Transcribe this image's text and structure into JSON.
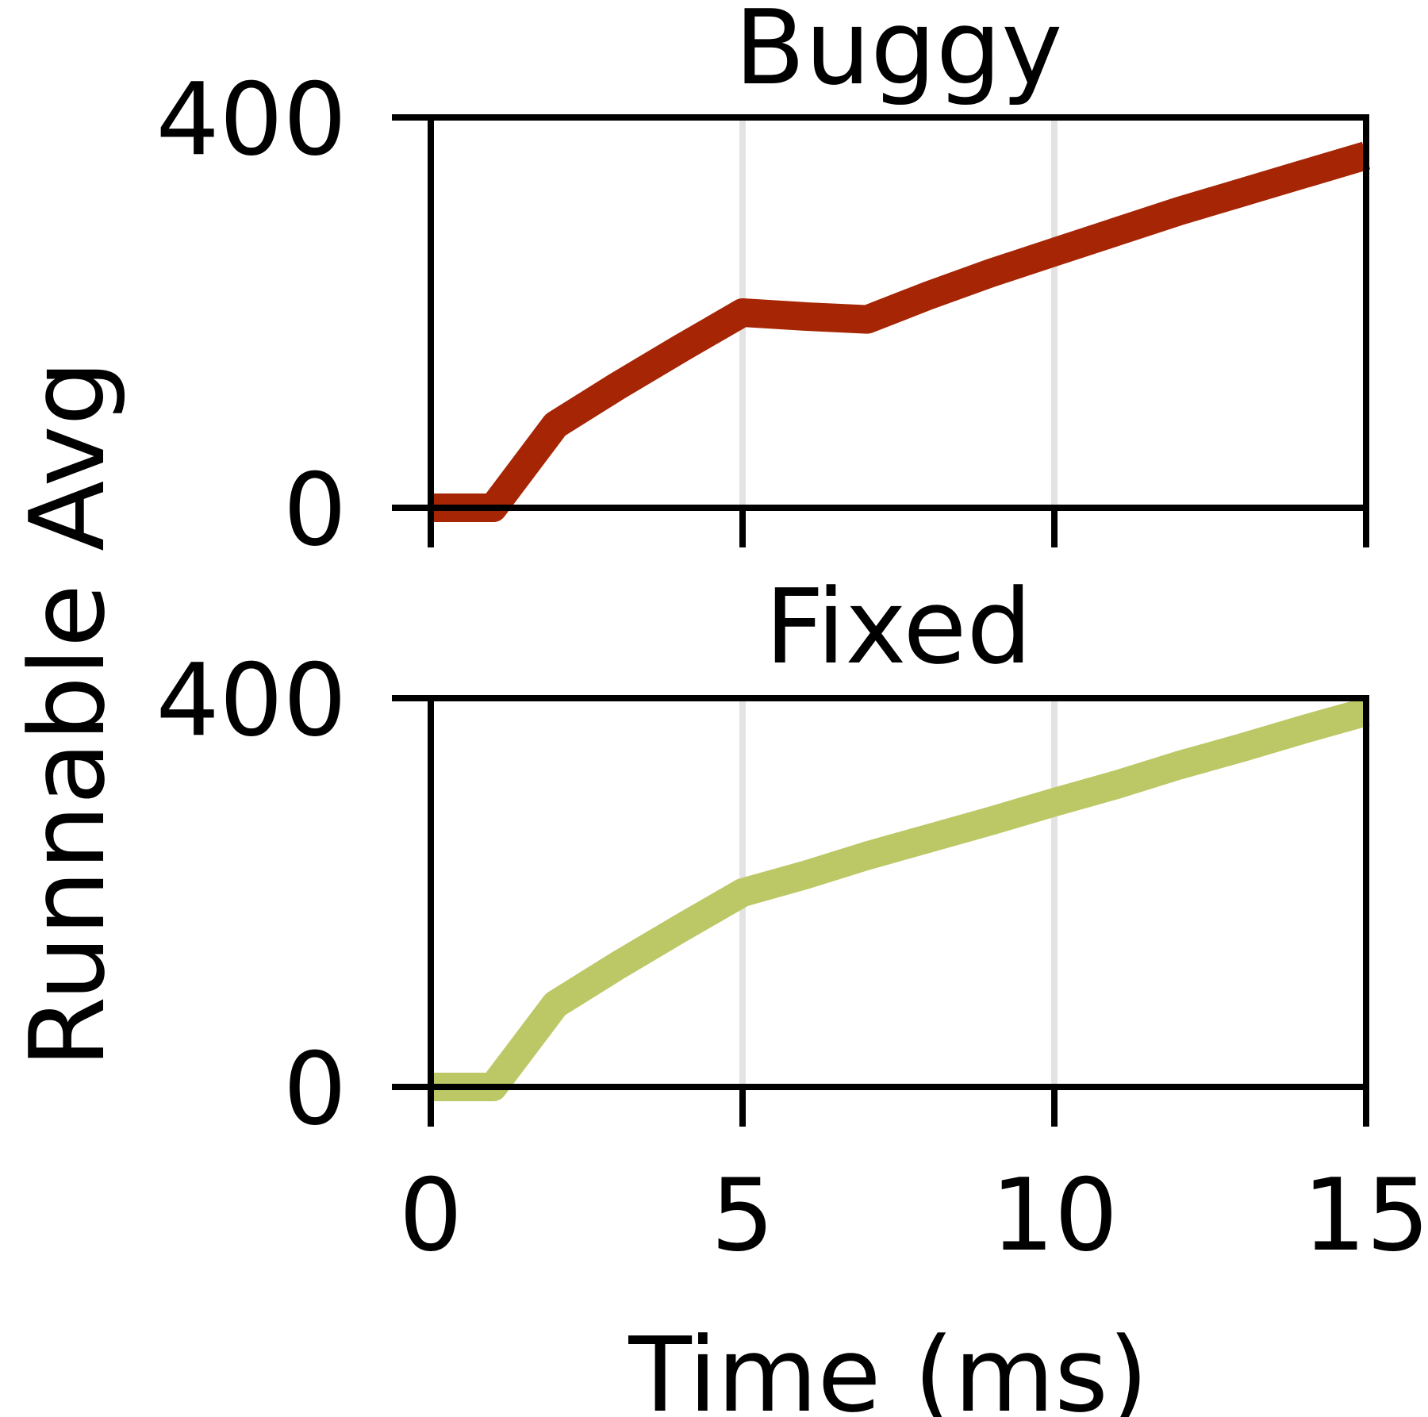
{
  "chart_data": [
    {
      "type": "line",
      "title": "Buggy",
      "xlabel": "Time (ms)",
      "ylabel": "Runnable Avg",
      "xlim": [
        0,
        15
      ],
      "ylim": [
        0,
        400
      ],
      "x_ticks": [
        "0",
        "5",
        "10",
        "15"
      ],
      "y_ticks": [
        "0",
        "400"
      ],
      "grid": "vertical",
      "color": "#a52504",
      "series": [
        {
          "x": [
            0,
            1,
            2,
            3,
            4,
            5,
            6,
            7,
            8,
            9,
            10,
            11,
            12,
            13,
            14,
            15
          ],
          "values": [
            0,
            0,
            85,
            125,
            163,
            200,
            196,
            193,
            218,
            241,
            262,
            283,
            304,
            323,
            342,
            361
          ]
        }
      ]
    },
    {
      "type": "line",
      "title": "Fixed",
      "xlabel": "Time (ms)",
      "ylabel": "Runnable Avg",
      "xlim": [
        0,
        15
      ],
      "ylim": [
        0,
        400
      ],
      "x_ticks": [
        "0",
        "5",
        "10",
        "15"
      ],
      "y_ticks": [
        "0",
        "400"
      ],
      "grid": "vertical",
      "color": "#bcc866",
      "series": [
        {
          "x": [
            0,
            1,
            2,
            3,
            4,
            5,
            6,
            7,
            8,
            9,
            10,
            11,
            12,
            13,
            14,
            15
          ],
          "values": [
            0,
            0,
            85,
            125,
            163,
            200,
            218,
            238,
            256,
            274,
            293,
            311,
            331,
            349,
            368,
            386
          ]
        }
      ]
    }
  ],
  "shared": {
    "xlabel": "Time (ms)",
    "ylabel": "Runnable Avg"
  }
}
